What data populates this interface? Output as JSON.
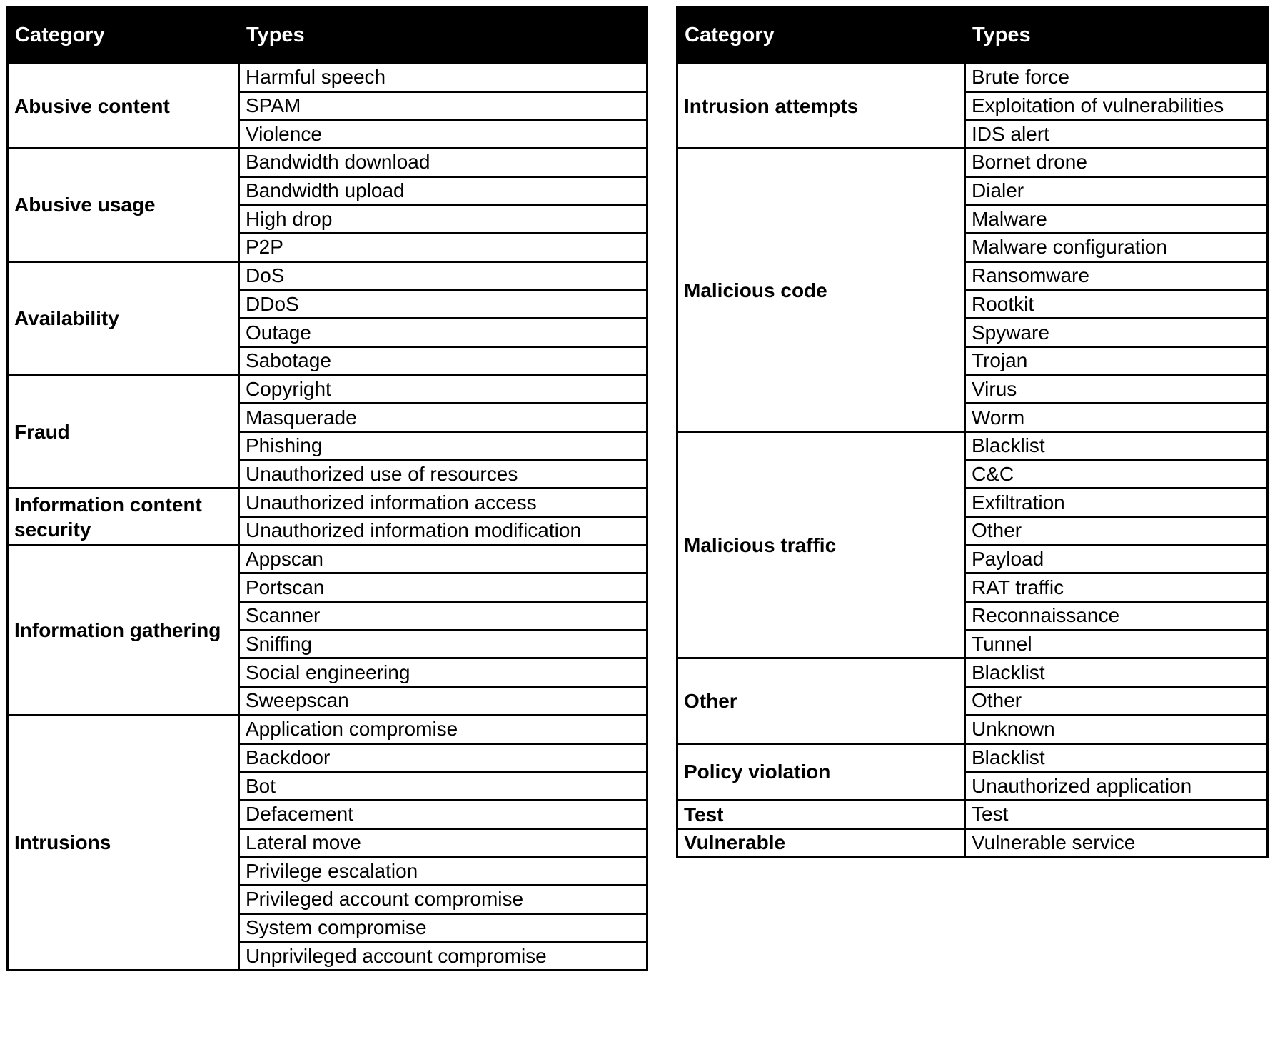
{
  "tables": [
    {
      "headers": {
        "category": "Category",
        "types": "Types"
      },
      "rows": [
        {
          "category": "Abusive content",
          "types": [
            "Harmful speech",
            "SPAM",
            "Violence"
          ]
        },
        {
          "category": "Abusive usage",
          "types": [
            "Bandwidth download",
            "Bandwidth upload",
            "High drop",
            "P2P"
          ]
        },
        {
          "category": "Availability",
          "types": [
            "DoS",
            "DDoS",
            "Outage",
            "Sabotage"
          ]
        },
        {
          "category": "Fraud",
          "types": [
            "Copyright",
            "Masquerade",
            "Phishing",
            "Unauthorized use of resources"
          ]
        },
        {
          "category": "Information content security",
          "types": [
            "Unauthorized information access",
            "Unauthorized information modification"
          ]
        },
        {
          "category": "Information gathering",
          "types": [
            "Appscan",
            "Portscan",
            "Scanner",
            "Sniffing",
            "Social engineering",
            "Sweepscan"
          ]
        },
        {
          "category": "Intrusions",
          "types": [
            "Application compromise",
            "Backdoor",
            "Bot",
            "Defacement",
            "Lateral move",
            "Privilege escalation",
            "Privileged account compromise",
            "System compromise",
            "Unprivileged account compromise"
          ]
        }
      ]
    },
    {
      "headers": {
        "category": "Category",
        "types": "Types"
      },
      "rows": [
        {
          "category": "Intrusion attempts",
          "types": [
            "Brute force",
            "Exploitation of vulnerabilities",
            "IDS alert"
          ]
        },
        {
          "category": "Malicious code",
          "types": [
            "Bornet drone",
            "Dialer",
            "Malware",
            "Malware configuration",
            "Ransomware",
            "Rootkit",
            "Spyware",
            "Trojan",
            "Virus",
            "Worm"
          ]
        },
        {
          "category": "Malicious traffic",
          "types": [
            "Blacklist",
            "C&C",
            "Exfiltration",
            "Other",
            "Payload",
            "RAT traffic",
            "Reconnaissance",
            "Tunnel"
          ]
        },
        {
          "category": "Other",
          "types": [
            "Blacklist",
            "Other",
            "Unknown"
          ]
        },
        {
          "category": "Policy violation",
          "types": [
            "Blacklist",
            "Unauthorized application"
          ]
        },
        {
          "category": "Test",
          "types": [
            "Test"
          ]
        },
        {
          "category": "Vulnerable",
          "types": [
            "Vulnerable service"
          ]
        }
      ]
    }
  ]
}
